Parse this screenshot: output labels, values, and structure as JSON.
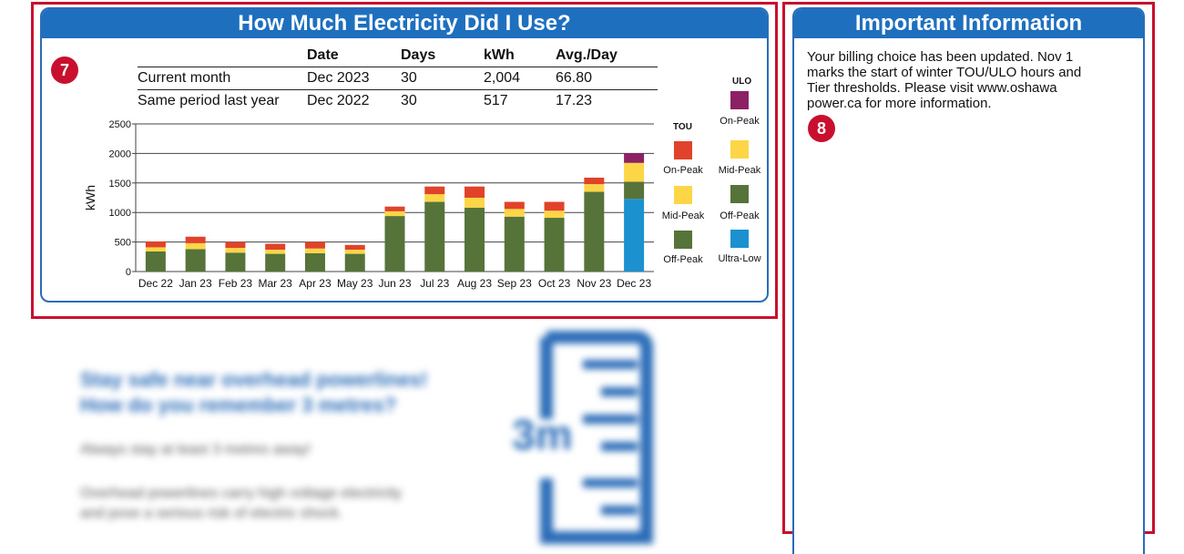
{
  "usage_section": {
    "title": "How Much Electricity Did I Use?",
    "badge": "7",
    "table": {
      "headers": [
        "",
        "Date",
        "Days",
        "kWh",
        "Avg./Day"
      ],
      "rows": [
        [
          "Current month",
          "Dec 2023",
          "30",
          "2,004",
          "66.80"
        ],
        [
          "Same period last year",
          "Dec 2022",
          "30",
          "517",
          "17.23"
        ]
      ]
    }
  },
  "chart_data": {
    "type": "bar",
    "stacked": true,
    "title": "",
    "xlabel": "",
    "ylabel": "kWh",
    "ylim": [
      0,
      2500
    ],
    "yticks": [
      "0",
      "500",
      "1000",
      "1500",
      "2000",
      "2500"
    ],
    "categories": [
      "Dec 22",
      "Jan 23",
      "Feb 23",
      "Mar 23",
      "Apr 23",
      "May 23",
      "Jun 23",
      "Jul 23",
      "Aug 23",
      "Sep 23",
      "Oct 23",
      "Nov 23",
      "Dec 23"
    ],
    "series": [
      {
        "name": "Ultra-Low",
        "color": "#1b91cf",
        "values": [
          0,
          0,
          0,
          0,
          0,
          0,
          0,
          0,
          0,
          0,
          0,
          0,
          1230
        ]
      },
      {
        "name": "Off-Peak",
        "color": "#56733a",
        "values": [
          340,
          380,
          320,
          300,
          310,
          300,
          940,
          1180,
          1080,
          930,
          910,
          1350,
          290
        ]
      },
      {
        "name": "Mid-Peak",
        "color": "#fcd647",
        "values": [
          70,
          100,
          80,
          70,
          80,
          70,
          80,
          130,
          170,
          130,
          120,
          130,
          320
        ]
      },
      {
        "name": "On-Peak",
        "color": "#e0432a",
        "values": [
          100,
          110,
          100,
          100,
          110,
          80,
          80,
          130,
          190,
          120,
          150,
          110,
          0
        ]
      },
      {
        "name": "On-Peak (ULO)",
        "color": "#8c2163",
        "values": [
          0,
          0,
          0,
          0,
          0,
          0,
          0,
          0,
          0,
          0,
          0,
          0,
          160
        ]
      }
    ],
    "legend": {
      "tou_title": "TOU",
      "ulo_title": "ULO",
      "tou": [
        {
          "label": "On-Peak",
          "color": "#e0432a"
        },
        {
          "label": "Mid-Peak",
          "color": "#fcd647"
        },
        {
          "label": "Off-Peak",
          "color": "#56733a"
        }
      ],
      "ulo": [
        {
          "label": "On-Peak",
          "color": "#8c2163"
        },
        {
          "label": "Mid-Peak",
          "color": "#fcd647"
        },
        {
          "label": "Off-Peak",
          "color": "#56733a"
        },
        {
          "label": "Ultra-Low",
          "color": "#1b91cf"
        }
      ]
    }
  },
  "info_section": {
    "title": "Important Information",
    "badge": "8",
    "lines": [
      "Your billing choice has been updated. Nov 1",
      "marks the start of winter TOU/ULO hours and",
      "Tier thresholds. Please visit www.oshawa",
      "power.ca for more information."
    ]
  },
  "blurred_promo": {
    "heading_lines": [
      "Stay safe near overhead powerlines!",
      "How do you remember 3 metres?"
    ],
    "body_lines": [
      "Always stay at least 3 metres away!",
      "Overhead powerlines carry high voltage electricity",
      "and pose a serious risk of electric shock."
    ],
    "ruler_label": "3m"
  },
  "colors": {
    "accent": "#1f6fbf",
    "highlight": "#c8102e"
  }
}
